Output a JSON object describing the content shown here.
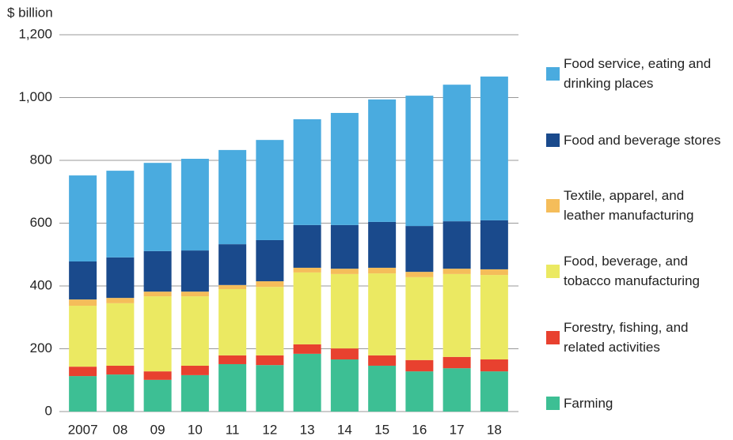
{
  "chart_data": {
    "type": "stacked_bar",
    "y_axis_label": "$ billion",
    "categories": [
      "2007",
      "08",
      "09",
      "10",
      "11",
      "12",
      "13",
      "14",
      "15",
      "16",
      "17",
      "18"
    ],
    "series": [
      {
        "name": "Farming",
        "color": "#3dbf94",
        "values": [
          113,
          118,
          101,
          116,
          151,
          148,
          184,
          166,
          146,
          128,
          138,
          128
        ]
      },
      {
        "name": "Forestry, fishing, and related activities",
        "color": "#e8412f",
        "values": [
          30,
          28,
          27,
          30,
          28,
          31,
          30,
          35,
          33,
          36,
          36,
          38
        ]
      },
      {
        "name": "Food, beverage, and tobacco manufacturing",
        "color": "#ebe962",
        "values": [
          194,
          199,
          239,
          221,
          211,
          218,
          229,
          237,
          261,
          264,
          264,
          269
        ]
      },
      {
        "name": "Textile, apparel, and leather manufacturing",
        "color": "#f5bd5a",
        "values": [
          20,
          17,
          15,
          15,
          13,
          18,
          15,
          17,
          18,
          17,
          17,
          18
        ]
      },
      {
        "name": "Food and beverage stores",
        "color": "#1a4a8c",
        "values": [
          121,
          129,
          129,
          131,
          130,
          131,
          136,
          139,
          146,
          146,
          151,
          156
        ]
      },
      {
        "name": "Food service, eating and drinking places",
        "color": "#4aabdf",
        "values": [
          274,
          276,
          281,
          292,
          300,
          319,
          337,
          357,
          390,
          415,
          435,
          458
        ]
      }
    ],
    "ylim": [
      0,
      1200
    ],
    "yticks": [
      0,
      200,
      400,
      600,
      800,
      {
        "value": 1000,
        "label": "1,000"
      },
      {
        "value": 1200,
        "label": "1,200"
      }
    ],
    "grid": true
  }
}
